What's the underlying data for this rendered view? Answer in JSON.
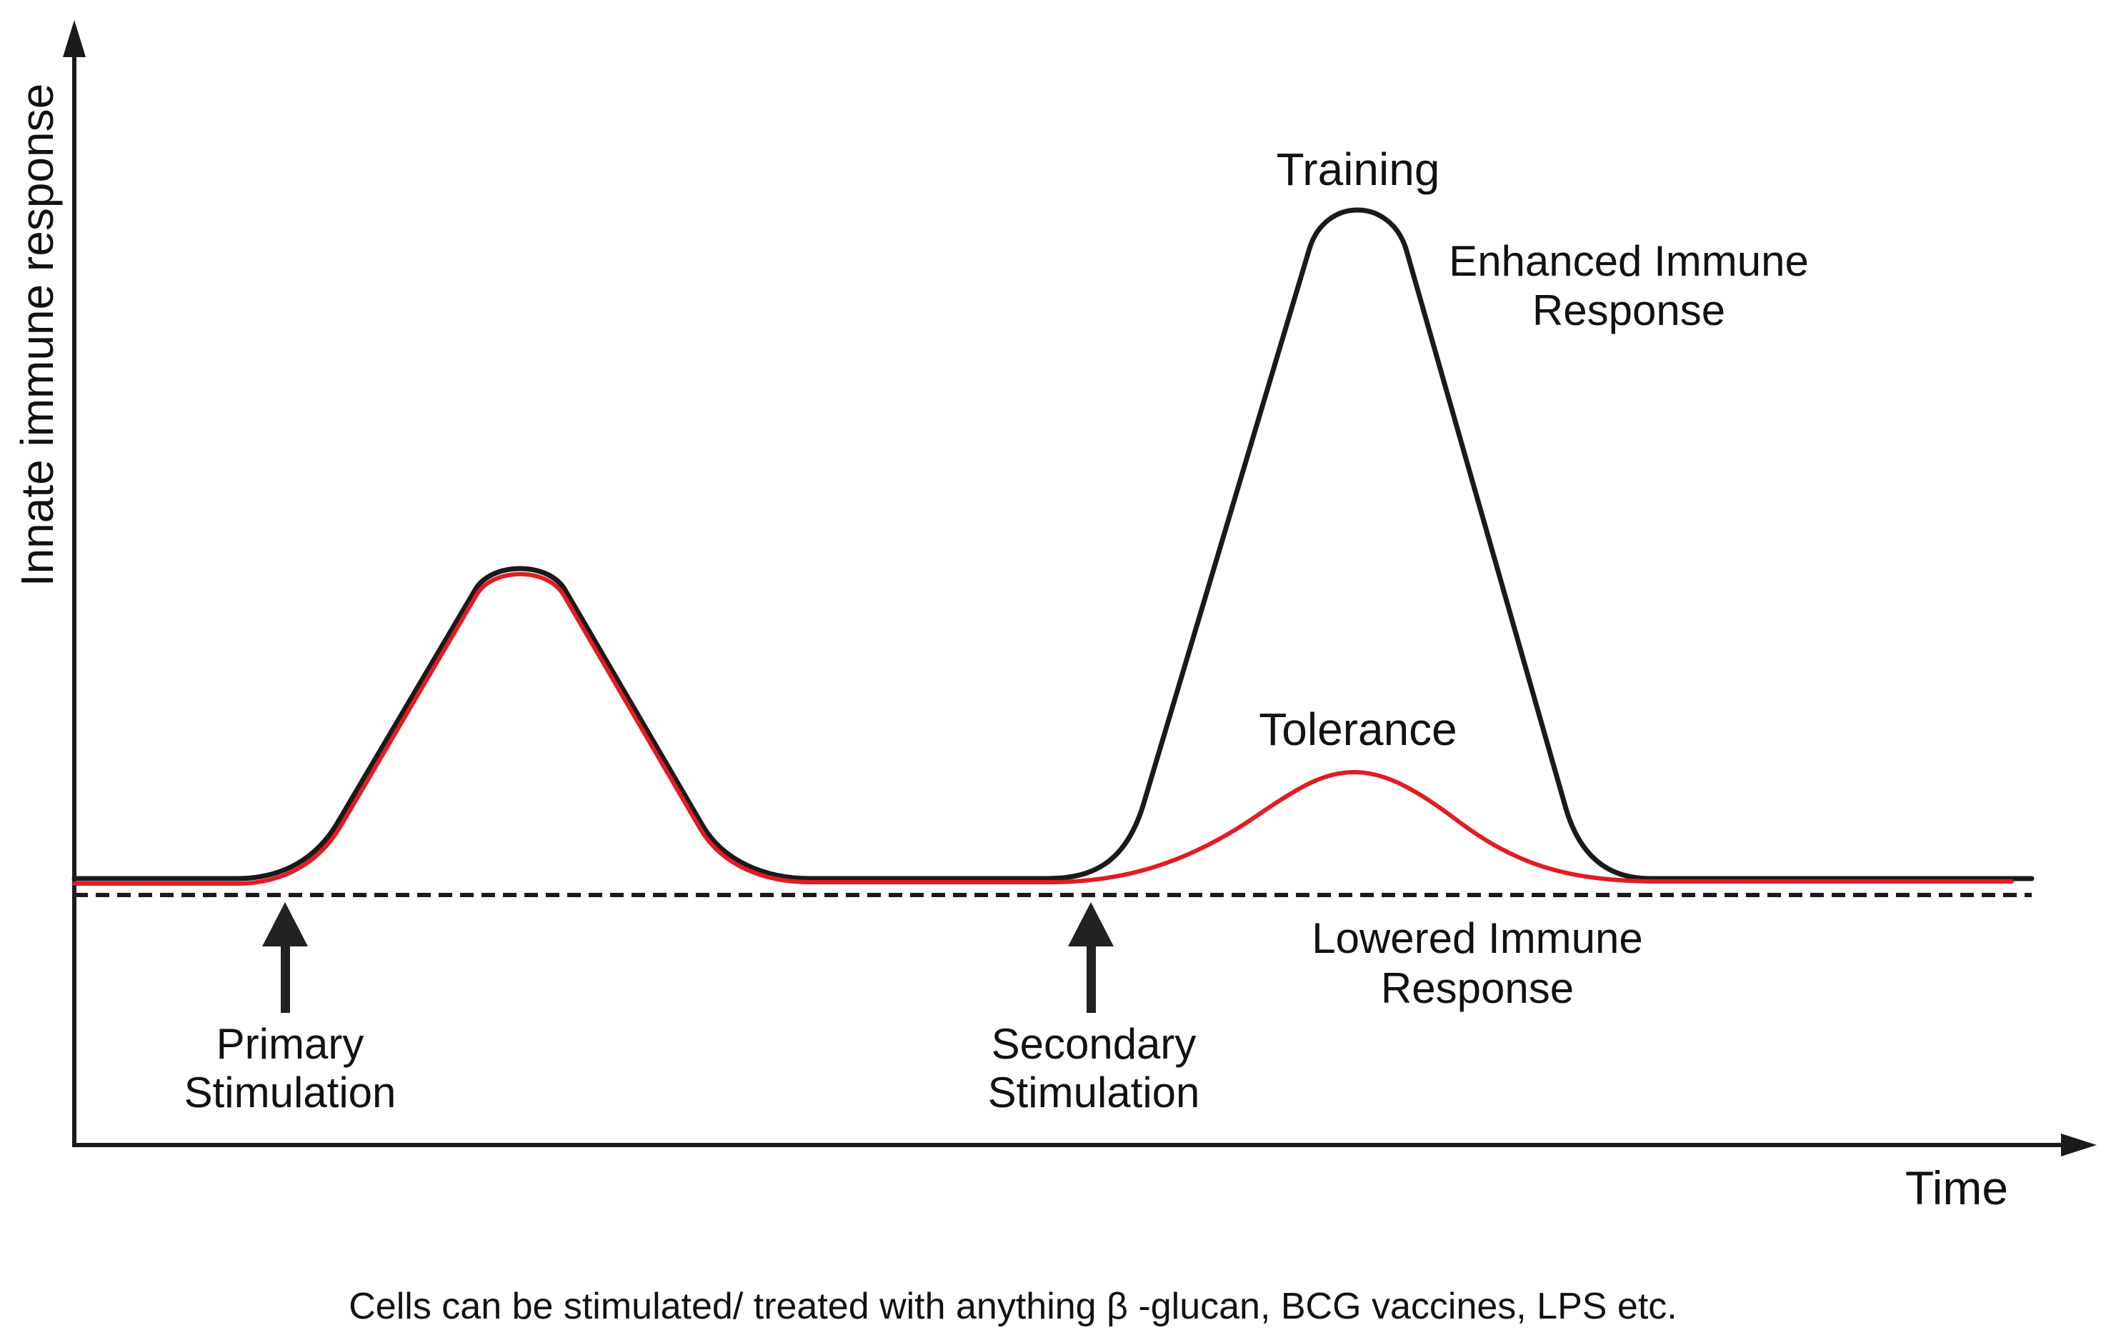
{
  "figure": {
    "y_axis_label": "Innate immune response",
    "x_axis_label": "Time"
  },
  "curve_labels": {
    "training": "Training",
    "enhanced_response": [
      "Enhanced Immune",
      "Response"
    ],
    "tolerance": "Tolerance",
    "lowered_response": [
      "Lowered Immune",
      "Response"
    ]
  },
  "stimuli": {
    "primary": [
      "Primary",
      "Stimulation"
    ],
    "secondary": [
      "Secondary",
      "Stimulation"
    ]
  },
  "caption": "Cells can be stimulated/ treated with anything β -glucan, BCG vaccines, LPS etc.",
  "colors": {
    "training_curve": "#1a1a1a",
    "tolerance_curve": "#e31b23",
    "highlight_text": "#c4161c",
    "baseline_dashed": "#1a1a1a"
  }
}
